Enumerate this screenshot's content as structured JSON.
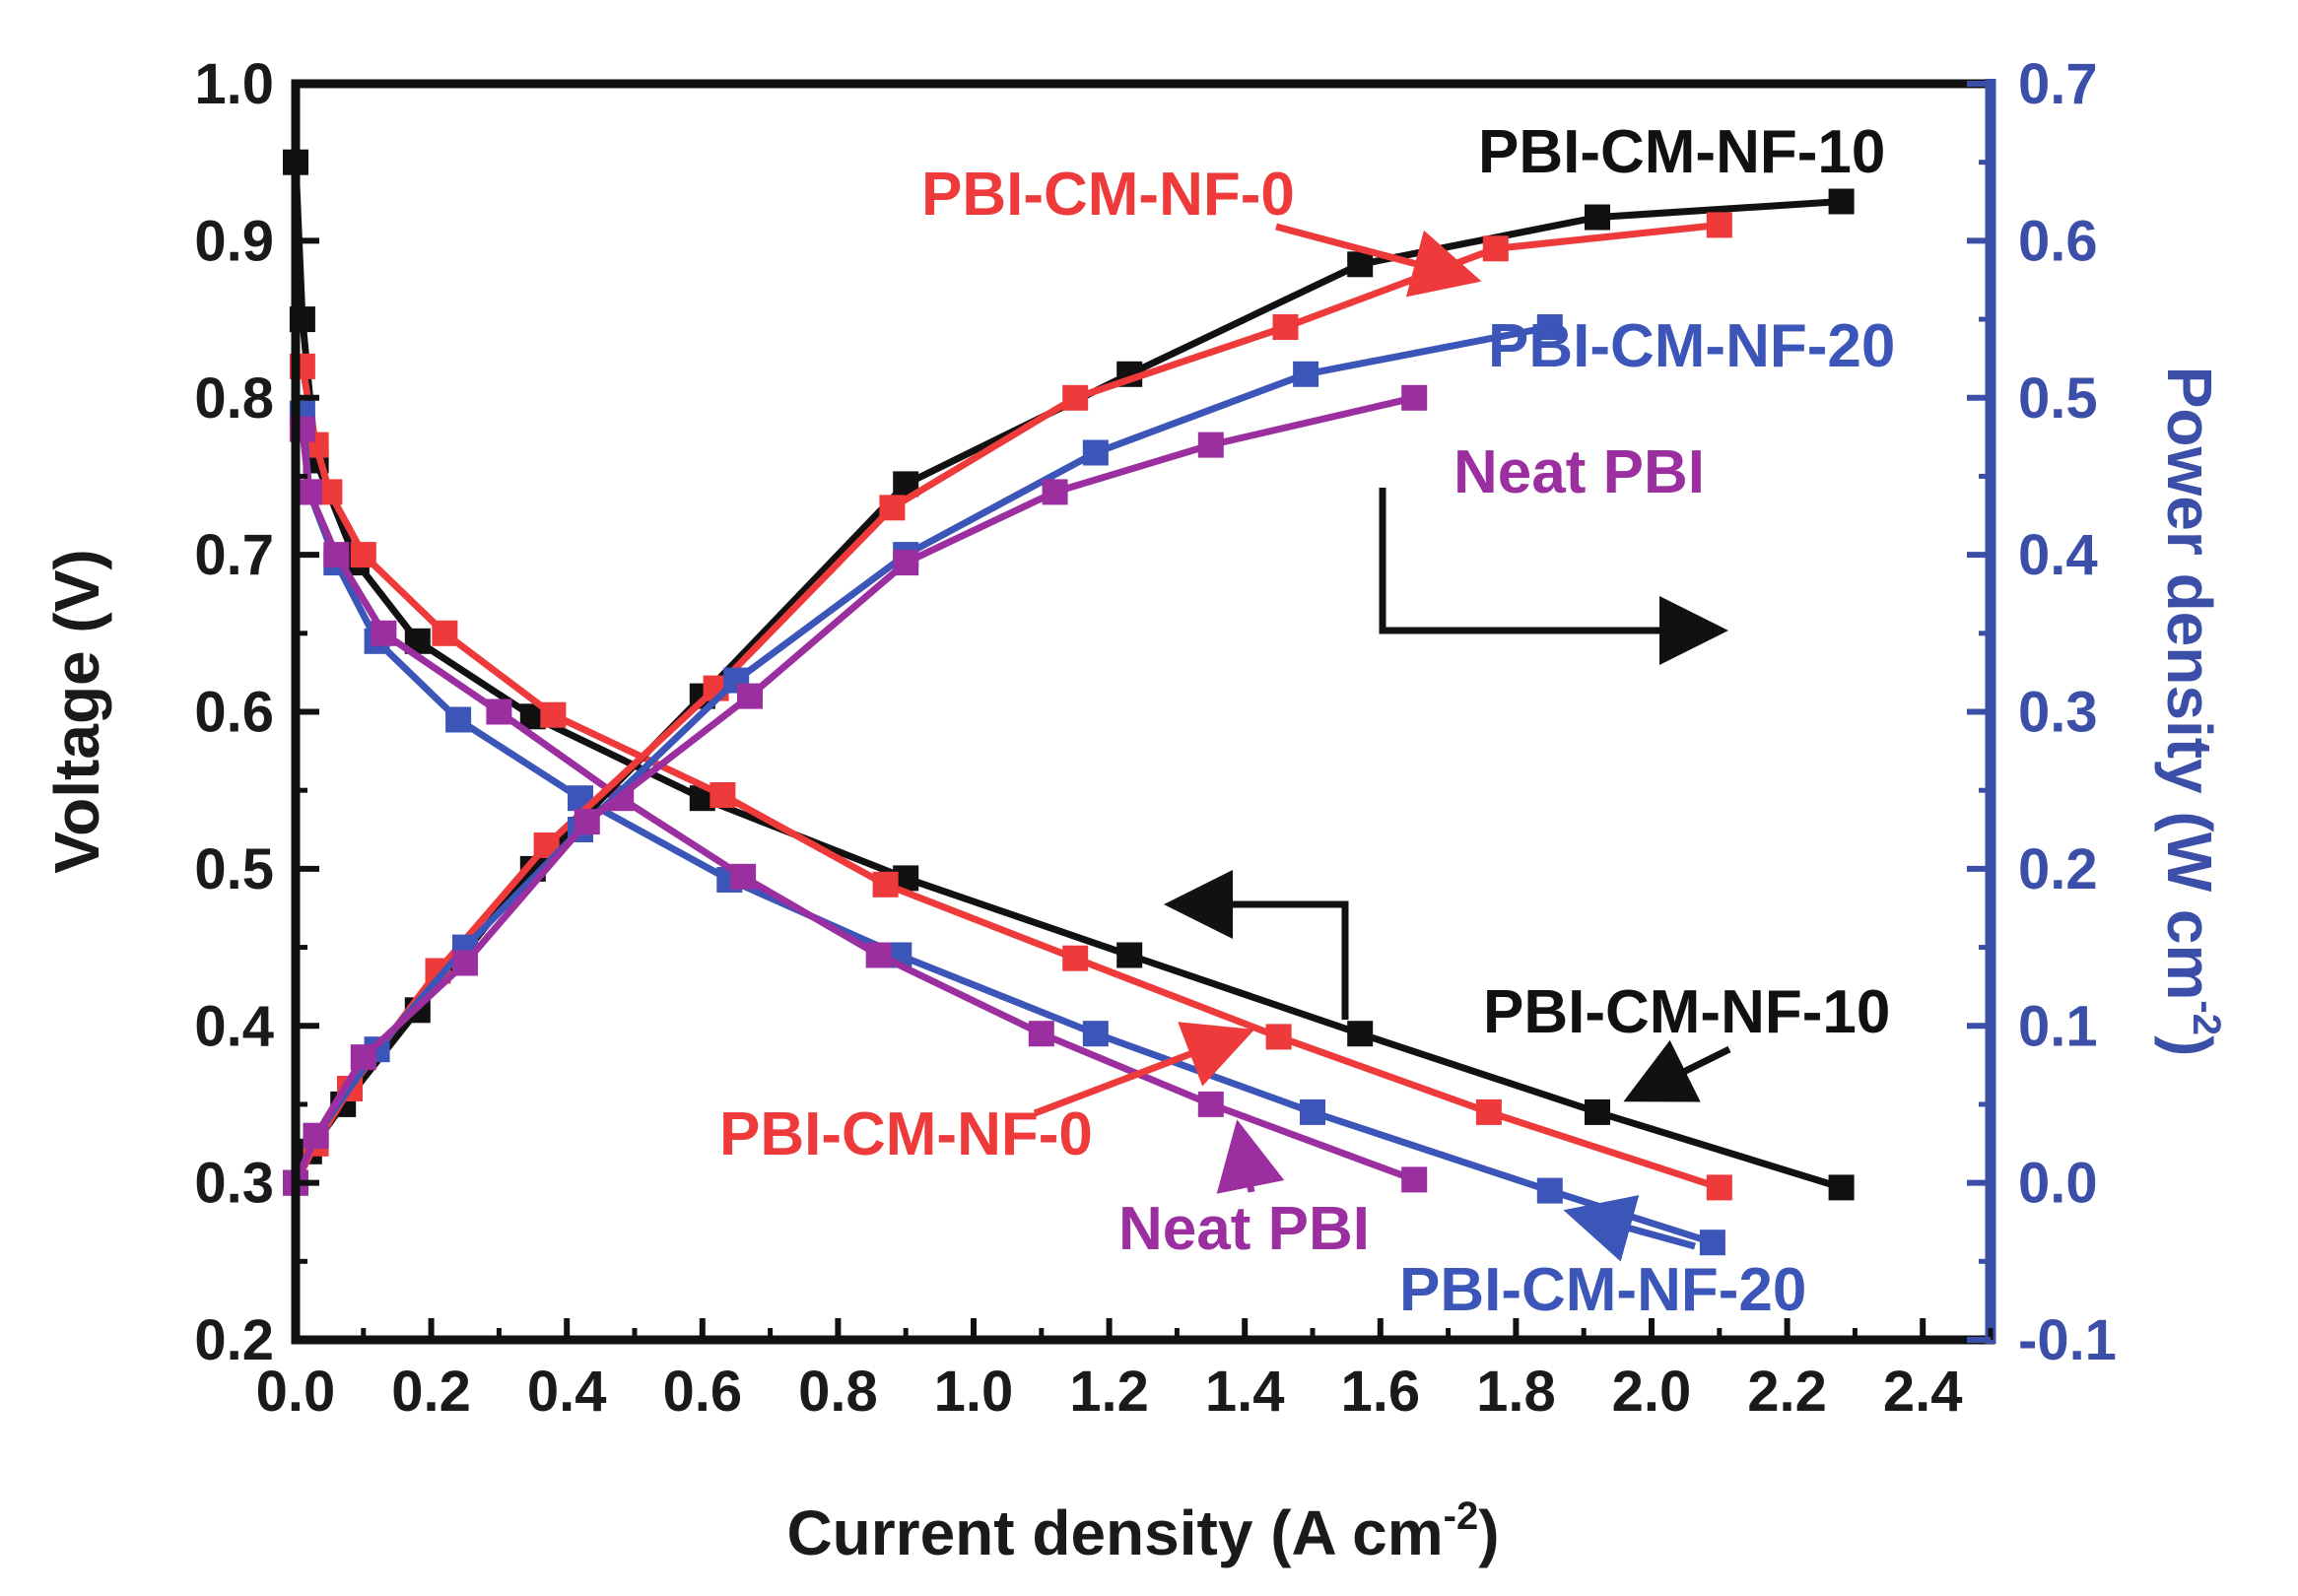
{
  "chart_data": {
    "type": "line",
    "title": "",
    "xlabel": "Current density (A cm",
    "xlabel_sup": "-2",
    "xlabel_close": ")",
    "ylabel": "Voltage (V)",
    "y2label": "Power density (W cm",
    "y2label_sup": "-2",
    "y2label_close": ")",
    "xlim": [
      0,
      2.5
    ],
    "ylim": [
      0.2,
      1.0
    ],
    "y2lim": [
      -0.1,
      0.7
    ],
    "xticks": [
      "0.0",
      "0.2",
      "0.4",
      "0.6",
      "0.8",
      "1.0",
      "1.2",
      "1.4",
      "1.6",
      "1.8",
      "2.0",
      "2.2",
      "2.4"
    ],
    "yticks": [
      "0.2",
      "0.3",
      "0.4",
      "0.5",
      "0.6",
      "0.7",
      "0.8",
      "0.9",
      "1.0"
    ],
    "y2ticks": [
      "-0.1",
      "0.0",
      "0.1",
      "0.2",
      "0.3",
      "0.4",
      "0.5",
      "0.6",
      "0.7"
    ],
    "colors": {
      "PBI-CM-NF-10": "#111111",
      "PBI-CM-NF-0": "#ee3a3a",
      "PBI-CM-NF-20": "#3b55b8",
      "Neat PBI": "#9b2fa0",
      "right_axis": "#3b4fa8"
    },
    "series": [
      {
        "name": "PBI-CM-NF-10",
        "kind": "voltage",
        "x": [
          0.0,
          0.01,
          0.03,
          0.09,
          0.18,
          0.35,
          0.6,
          0.9,
          1.23,
          1.57,
          1.92,
          2.28
        ],
        "y": [
          0.95,
          0.85,
          0.76,
          0.695,
          0.645,
          0.597,
          0.545,
          0.494,
          0.445,
          0.395,
          0.345,
          0.297
        ]
      },
      {
        "name": "PBI-CM-NF-0",
        "kind": "voltage",
        "x": [
          0.01,
          0.03,
          0.05,
          0.1,
          0.22,
          0.38,
          0.63,
          0.87,
          1.15,
          1.45,
          1.76,
          2.1
        ],
        "y": [
          0.82,
          0.77,
          0.74,
          0.7,
          0.65,
          0.598,
          0.547,
          0.49,
          0.443,
          0.393,
          0.345,
          0.297
        ]
      },
      {
        "name": "PBI-CM-NF-20",
        "kind": "voltage",
        "x": [
          0.01,
          0.02,
          0.06,
          0.12,
          0.24,
          0.42,
          0.64,
          0.89,
          1.18,
          1.5,
          1.85,
          2.09
        ],
        "y": [
          0.79,
          0.74,
          0.695,
          0.645,
          0.595,
          0.545,
          0.493,
          0.445,
          0.395,
          0.345,
          0.295,
          0.262
        ]
      },
      {
        "name": "Neat PBI",
        "kind": "voltage",
        "x": [
          0.01,
          0.02,
          0.06,
          0.13,
          0.3,
          0.48,
          0.66,
          0.86,
          1.1,
          1.35,
          1.65
        ],
        "y": [
          0.78,
          0.74,
          0.7,
          0.65,
          0.6,
          0.545,
          0.495,
          0.445,
          0.395,
          0.35,
          0.302
        ]
      },
      {
        "name": "PBI-CM-NF-10",
        "kind": "power",
        "x": [
          0.0,
          0.02,
          0.07,
          0.18,
          0.35,
          0.6,
          0.9,
          1.23,
          1.57,
          1.92,
          2.28
        ],
        "y": [
          0.0,
          0.02,
          0.05,
          0.11,
          0.2,
          0.31,
          0.445,
          0.515,
          0.585,
          0.615,
          0.625
        ]
      },
      {
        "name": "PBI-CM-NF-0",
        "kind": "power",
        "x": [
          0.0,
          0.03,
          0.08,
          0.21,
          0.37,
          0.62,
          0.88,
          1.15,
          1.46,
          1.77,
          2.1
        ],
        "y": [
          0.0,
          0.025,
          0.06,
          0.135,
          0.215,
          0.315,
          0.43,
          0.5,
          0.545,
          0.595,
          0.61
        ]
      },
      {
        "name": "PBI-CM-NF-20",
        "kind": "power",
        "x": [
          0.0,
          0.03,
          0.12,
          0.25,
          0.42,
          0.65,
          0.9,
          1.18,
          1.49,
          1.85
        ],
        "y": [
          0.0,
          0.03,
          0.085,
          0.15,
          0.225,
          0.32,
          0.4,
          0.465,
          0.515,
          0.545
        ]
      },
      {
        "name": "Neat PBI",
        "kind": "power",
        "x": [
          0.0,
          0.03,
          0.1,
          0.25,
          0.43,
          0.67,
          0.9,
          1.12,
          1.35,
          1.65
        ],
        "y": [
          0.0,
          0.03,
          0.08,
          0.14,
          0.23,
          0.31,
          0.395,
          0.44,
          0.47,
          0.5
        ]
      }
    ],
    "annotations": [
      {
        "text": "PBI-CM-NF-10",
        "color": "#111111",
        "group": "power"
      },
      {
        "text": "PBI-CM-NF-0",
        "color": "#ee3a3a",
        "group": "power"
      },
      {
        "text": "PBI-CM-NF-20",
        "color": "#3b55b8",
        "group": "power"
      },
      {
        "text": "Neat PBI",
        "color": "#9b2fa0",
        "group": "power"
      },
      {
        "text": "PBI-CM-NF-10",
        "color": "#111111",
        "group": "voltage"
      },
      {
        "text": "PBI-CM-NF-0",
        "color": "#ee3a3a",
        "group": "voltage"
      },
      {
        "text": "Neat PBI",
        "color": "#9b2fa0",
        "group": "voltage"
      },
      {
        "text": "PBI-CM-NF-20",
        "color": "#3b55b8",
        "group": "voltage"
      }
    ]
  }
}
